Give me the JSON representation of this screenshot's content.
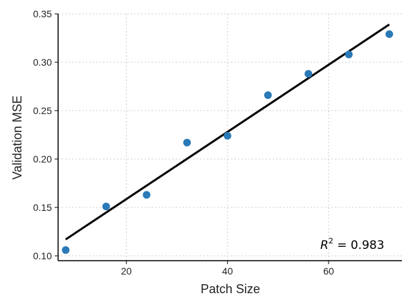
{
  "chart_data": {
    "type": "scatter",
    "title": "",
    "xlabel": "Patch Size",
    "ylabel": "Validation MSE",
    "xlim": [
      6.5,
      74.5
    ],
    "ylim": [
      0.095,
      0.35
    ],
    "xticks": [
      20,
      40,
      60
    ],
    "yticks": [
      0.1,
      0.15,
      0.2,
      0.25,
      0.3,
      0.35
    ],
    "xtick_labels": [
      "20",
      "40",
      "60"
    ],
    "ytick_labels": [
      "0.10",
      "0.15",
      "0.20",
      "0.25",
      "0.30",
      "0.35"
    ],
    "grid": true,
    "legend": "none",
    "points": {
      "x": [
        8,
        16,
        24,
        32,
        40,
        48,
        56,
        64,
        72
      ],
      "y": [
        0.106,
        0.151,
        0.163,
        0.217,
        0.224,
        0.266,
        0.288,
        0.308,
        0.329
      ],
      "color": "#2a7ab8"
    },
    "fit_line": {
      "x": [
        8,
        72
      ],
      "y": [
        0.117,
        0.339
      ],
      "color": "#000000"
    },
    "annotation": {
      "r2_symbol": "R",
      "r2_exp": "2",
      "r2_text": " = 0.983",
      "position": "bottom-right"
    }
  }
}
